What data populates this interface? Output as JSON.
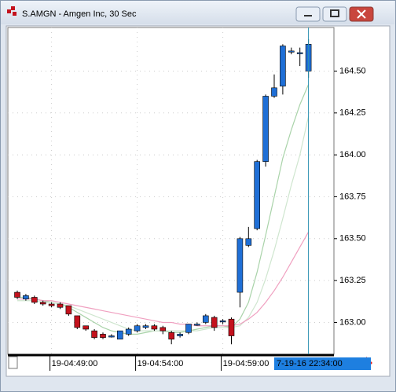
{
  "window_title": "S.AMGN - Amgen Inc, 30 Sec",
  "chart_data": {
    "type": "candlestick",
    "up_color": "#1f6fd6",
    "down_color": "#c4121d",
    "grid": true,
    "categories": [
      null,
      null,
      null,
      null,
      "19-04:49:00",
      null,
      null,
      null,
      null,
      null,
      null,
      null,
      null,
      null,
      "19-04:54:00",
      null,
      null,
      null,
      null,
      null,
      null,
      null,
      null,
      null,
      "19-04:59:00",
      null,
      null,
      null,
      null,
      null,
      null,
      null,
      null,
      null,
      null
    ],
    "open": [
      163.18,
      163.14,
      163.15,
      163.12,
      163.11,
      163.11,
      163.1,
      163.04,
      162.98,
      162.95,
      162.93,
      162.92,
      162.9,
      162.93,
      162.95,
      162.97,
      162.98,
      162.97,
      162.94,
      162.92,
      162.94,
      162.99,
      163.0,
      163.03,
      163.01,
      163.02,
      163.18,
      163.46,
      163.56,
      163.96,
      164.35,
      164.41,
      164.62,
      164.61,
      164.5
    ],
    "high": [
      163.19,
      163.17,
      163.16,
      163.13,
      163.12,
      163.12,
      163.1,
      163.04,
      162.98,
      162.96,
      162.94,
      162.93,
      162.95,
      162.97,
      162.99,
      162.99,
      162.99,
      162.98,
      162.95,
      162.94,
      162.99,
      163.0,
      163.05,
      163.04,
      163.02,
      163.03,
      163.51,
      163.57,
      163.97,
      164.36,
      164.48,
      164.66,
      164.64,
      164.64,
      164.69
    ],
    "low": [
      163.14,
      163.13,
      163.11,
      163.1,
      163.09,
      163.08,
      163.04,
      162.96,
      162.95,
      162.9,
      162.9,
      162.91,
      162.9,
      162.92,
      162.94,
      162.96,
      162.95,
      162.93,
      162.87,
      162.91,
      162.93,
      162.98,
      162.99,
      162.95,
      162.99,
      162.87,
      163.09,
      163.45,
      163.55,
      163.93,
      164.34,
      164.36,
      164.6,
      164.53,
      164.46
    ],
    "close": [
      163.15,
      163.16,
      163.12,
      163.11,
      163.1,
      163.09,
      163.05,
      162.97,
      162.96,
      162.91,
      162.91,
      162.92,
      162.95,
      162.96,
      162.98,
      162.98,
      162.96,
      162.95,
      162.9,
      162.93,
      162.99,
      162.99,
      163.04,
      162.97,
      163.01,
      162.92,
      163.5,
      163.5,
      163.96,
      164.35,
      164.4,
      164.65,
      164.62,
      164.61,
      164.66
    ],
    "lines": [
      {
        "color": "#a9d3a9",
        "values": [
          163.15,
          163.15,
          163.14,
          163.13,
          163.12,
          163.11,
          163.09,
          163.06,
          163.03,
          163.0,
          162.97,
          162.95,
          162.94,
          162.93,
          162.93,
          162.94,
          162.95,
          162.95,
          162.94,
          162.94,
          162.95,
          162.96,
          162.97,
          162.98,
          162.98,
          162.97,
          163.02,
          163.12,
          163.3,
          163.52,
          163.75,
          163.98,
          164.15,
          164.3,
          164.42
        ]
      },
      {
        "color": "#cfe6cf",
        "values": [
          163.13,
          163.13,
          163.13,
          163.12,
          163.12,
          163.11,
          163.1,
          163.08,
          163.06,
          163.04,
          163.02,
          163.0,
          162.98,
          162.96,
          162.95,
          162.95,
          162.95,
          162.95,
          162.95,
          162.95,
          162.95,
          162.95,
          162.96,
          162.97,
          162.97,
          162.97,
          162.98,
          163.03,
          163.12,
          163.26,
          163.43,
          163.62,
          163.82,
          164.0,
          164.23
        ]
      },
      {
        "color": "#f0a0c0",
        "values": [
          163.14,
          163.14,
          163.14,
          163.13,
          163.13,
          163.12,
          163.11,
          163.1,
          163.09,
          163.08,
          163.07,
          163.06,
          163.05,
          163.04,
          163.03,
          163.02,
          163.01,
          163.0,
          163.0,
          162.99,
          162.99,
          162.98,
          162.98,
          162.98,
          162.98,
          162.98,
          162.99,
          163.02,
          163.06,
          163.12,
          163.19,
          163.27,
          163.36,
          163.45,
          163.54
        ]
      }
    ],
    "ylim": [
      162.81,
      164.76
    ],
    "yticks": [
      {
        "value": 163.0,
        "label": "163.00"
      },
      163.25,
      {
        "value": 163.5,
        "label": "163.50"
      },
      163.75,
      {
        "value": 164.0,
        "label": "164.00"
      },
      164.25,
      {
        "value": 164.5,
        "label": "164.50"
      }
    ],
    "crosshair_color": "#2a8fb0",
    "crosshair_label": "7-19-16 22:34:00"
  }
}
